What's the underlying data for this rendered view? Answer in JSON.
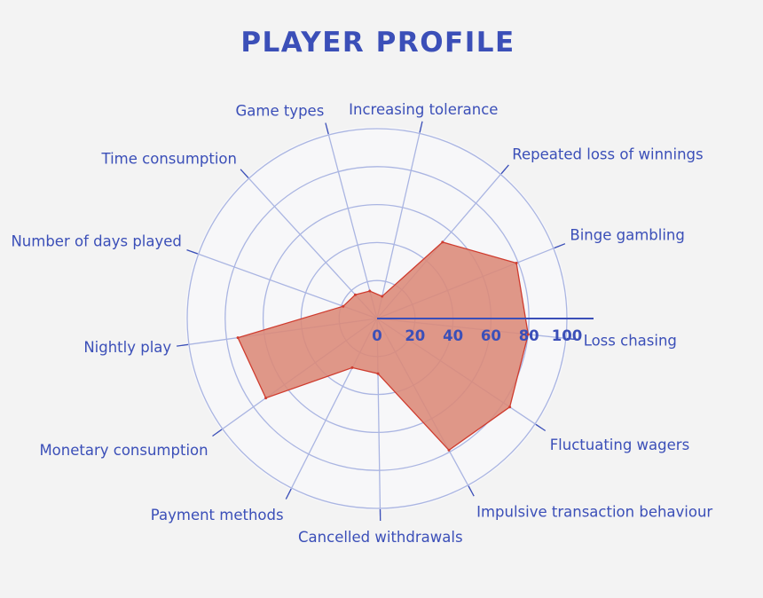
{
  "title": "PLAYER PROFILE",
  "chart_data": {
    "type": "radar",
    "title": "PLAYER PROFILE",
    "categories": [
      "Loss chasing",
      "Fluctuating wagers",
      "Impulsive transaction behaviour",
      "Cancelled withdrawals",
      "Payment methods",
      "Monetary consumption",
      "Nightly play",
      "Number of days played",
      "Time consumption",
      "Game types",
      "Increasing tolerance",
      "Repeated loss of winnings",
      "Binge gambling"
    ],
    "values": [
      80,
      84,
      79,
      29,
      29,
      72,
      74,
      19,
      17,
      15,
      12,
      53,
      79
    ],
    "ylim": [
      0,
      100
    ],
    "ticks": [
      0,
      20,
      40,
      60,
      80,
      100
    ],
    "grid": true,
    "colors": {
      "fill": "#dc8a78",
      "stroke": "#cf3c2f",
      "grid": "#aab5e2",
      "axis": "#3b4fb8",
      "text": "#3b4fb8",
      "disc": "#f7f7f9"
    }
  }
}
